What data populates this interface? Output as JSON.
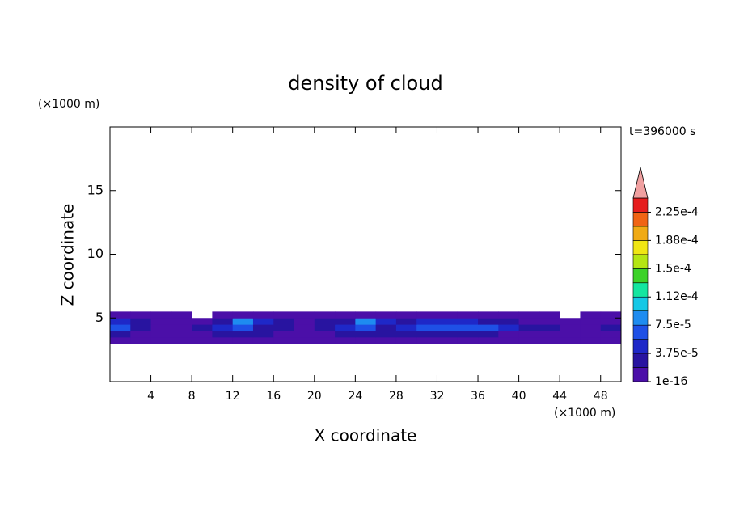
{
  "chart_data": {
    "type": "contour",
    "title": "density of cloud",
    "time_label": "t=396000 s",
    "x_label": "X coordinate",
    "x_unit": "(×1000 m)",
    "y_label": "Z coordinate",
    "y_unit": "(×1000 m)",
    "xlim": [
      0,
      50
    ],
    "xticks": [
      4,
      8,
      12,
      16,
      20,
      24,
      28,
      32,
      36,
      40,
      44,
      48
    ],
    "ylim": [
      0,
      20
    ],
    "yticks": [
      5,
      10,
      15
    ],
    "field": {
      "x": [
        1,
        3,
        5,
        7,
        9,
        11,
        13,
        15,
        17,
        19,
        21,
        23,
        25,
        27,
        29,
        31,
        33,
        35,
        37,
        39,
        41,
        43,
        45,
        47,
        49
      ],
      "z": [
        3.25,
        3.75,
        4.25,
        4.75,
        5.25
      ],
      "values": [
        [
          1e-05,
          1e-05,
          1e-05,
          1e-05,
          1e-05,
          1e-05,
          1e-05,
          1e-05,
          1e-05,
          1e-05,
          1e-05,
          1e-05,
          1e-05,
          1e-05,
          1e-05,
          1e-05,
          1e-05,
          1e-05,
          1e-05,
          1e-05,
          1e-05,
          1e-05,
          1e-05,
          1e-05,
          1e-05
        ],
        [
          2e-05,
          1e-05,
          1e-05,
          1e-05,
          1e-05,
          2e-05,
          2e-05,
          2e-05,
          1e-05,
          1e-05,
          1e-05,
          2e-05,
          2e-05,
          2e-05,
          2e-05,
          2e-05,
          2e-05,
          2e-05,
          2e-05,
          1e-05,
          1e-05,
          1e-05,
          1e-05,
          1e-05,
          1e-05
        ],
        [
          6e-05,
          2e-05,
          1e-05,
          1e-05,
          2e-05,
          4e-05,
          6e-05,
          3e-05,
          2e-05,
          1e-05,
          2e-05,
          4e-05,
          6e-05,
          3e-05,
          5e-05,
          6e-05,
          6e-05,
          6e-05,
          6e-05,
          4e-05,
          2e-05,
          2e-05,
          1e-05,
          1e-05,
          2e-05
        ],
        [
          4e-05,
          2e-05,
          1e-05,
          1e-05,
          1e-05,
          3e-05,
          8e-05,
          4e-05,
          2e-05,
          1e-05,
          2e-05,
          3e-05,
          8e-05,
          4e-05,
          3e-05,
          4e-05,
          5e-05,
          4e-05,
          3e-05,
          2e-05,
          1e-05,
          1e-05,
          1e-05,
          1e-05,
          1e-05
        ],
        [
          1e-05,
          1e-05,
          1e-05,
          1e-05,
          null,
          1e-05,
          1e-05,
          1e-05,
          1e-05,
          1e-05,
          1e-05,
          1e-05,
          1e-05,
          1e-05,
          1e-05,
          1e-05,
          1e-05,
          1e-05,
          1e-05,
          1e-05,
          1e-05,
          1e-05,
          null,
          1e-05,
          1e-05
        ]
      ]
    },
    "colorbar": {
      "boundaries": [
        1e-16,
        1.875e-05,
        3.75e-05,
        5.625e-05,
        7.5e-05,
        9.375e-05,
        0.0001125,
        0.00013125,
        0.00015,
        0.00016875,
        0.0001875,
        0.00020625,
        0.000225,
        0.00024375
      ],
      "colors": [
        "#4b0fa8",
        "#2814a0",
        "#1e28c8",
        "#1e50e6",
        "#1e8cf0",
        "#14c8e6",
        "#14e6a0",
        "#3cd228",
        "#b4e614",
        "#f0e614",
        "#f0aa14",
        "#f06414",
        "#e61e1e"
      ],
      "over_color": "#f0a0a0",
      "ticks": [
        {
          "value": 1e-16,
          "label": "1e-16"
        },
        {
          "value": 3.75e-05,
          "label": "3.75e-5"
        },
        {
          "value": 7.5e-05,
          "label": "7.5e-5"
        },
        {
          "value": 0.0001125,
          "label": "1.12e-4"
        },
        {
          "value": 0.00015,
          "label": "1.5e-4"
        },
        {
          "value": 0.0001875,
          "label": "1.88e-4"
        },
        {
          "value": 0.000225,
          "label": "2.25e-4"
        }
      ]
    }
  }
}
